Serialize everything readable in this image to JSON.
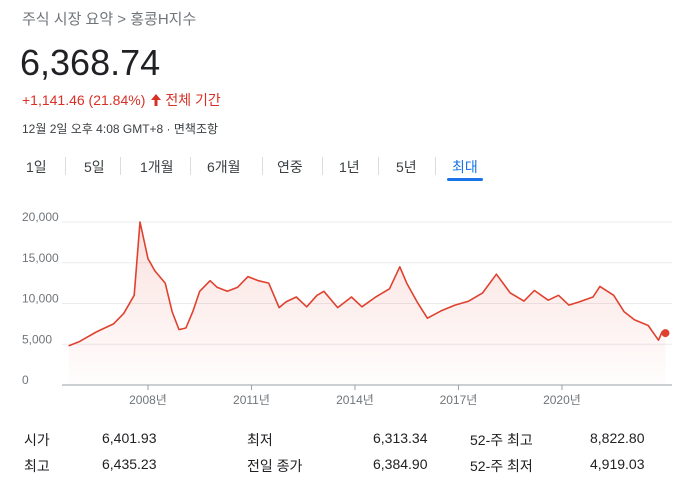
{
  "header": {
    "breadcrumb": "주식 시장 요약 > 홍콩H지수",
    "price": "6,368.74",
    "change": "+1,141.46 (21.84%)",
    "period": "전체 기간",
    "timestamp": "12월 2일 오후 4:08 GMT+8 · 면책조항"
  },
  "tabs": {
    "items": [
      "1일",
      "5일",
      "1개월",
      "6개월",
      "연중",
      "1년",
      "5년",
      "최대"
    ],
    "active": 7
  },
  "chart_data": {
    "type": "line",
    "color": "#e0412f",
    "grid": true,
    "x": [
      2005.7,
      2006.0,
      2006.5,
      2007.0,
      2007.3,
      2007.6,
      2007.77,
      2008.0,
      2008.2,
      2008.5,
      2008.7,
      2008.9,
      2009.1,
      2009.3,
      2009.5,
      2009.8,
      2010.0,
      2010.3,
      2010.6,
      2010.9,
      2011.2,
      2011.5,
      2011.8,
      2012.0,
      2012.3,
      2012.6,
      2012.9,
      2013.1,
      2013.5,
      2013.9,
      2014.2,
      2014.6,
      2015.0,
      2015.3,
      2015.5,
      2015.8,
      2016.1,
      2016.5,
      2016.9,
      2017.3,
      2017.7,
      2018.1,
      2018.5,
      2018.9,
      2019.2,
      2019.6,
      2019.9,
      2020.2,
      2020.5,
      2020.9,
      2021.1,
      2021.5,
      2021.8,
      2022.1,
      2022.5,
      2022.8,
      2022.9,
      2023.0
    ],
    "values": [
      4800,
      5300,
      6500,
      7500,
      8800,
      11000,
      20000,
      15500,
      14000,
      12500,
      9000,
      6800,
      7000,
      9000,
      11500,
      12800,
      12000,
      11500,
      12000,
      13300,
      12800,
      12500,
      9500,
      10200,
      10800,
      9600,
      11000,
      11500,
      9500,
      10800,
      9600,
      10800,
      11800,
      14500,
      12500,
      10200,
      8200,
      9100,
      9800,
      10300,
      11300,
      13600,
      11300,
      10300,
      11600,
      10400,
      11000,
      9800,
      10200,
      10800,
      12100,
      11000,
      9000,
      8000,
      7300,
      5500,
      6500,
      6369
    ],
    "xlim": [
      2005.45,
      2023.19
    ],
    "ylim": [
      0,
      20000
    ],
    "xticks": [
      {
        "value": 2008,
        "label": "2008년"
      },
      {
        "value": 2011,
        "label": "2011년"
      },
      {
        "value": 2014,
        "label": "2014년"
      },
      {
        "value": 2017,
        "label": "2017년"
      },
      {
        "value": 2020,
        "label": "2020년"
      }
    ],
    "yticks": [
      0,
      {
        "value": 5000,
        "label": "5,000"
      },
      {
        "value": 10000,
        "label": "10,000"
      },
      {
        "value": 15000,
        "label": "15,000"
      },
      {
        "value": 20000,
        "label": "20,000"
      }
    ]
  },
  "stats": [
    [
      [
        "시가",
        "6,401.93"
      ],
      [
        "최고",
        "6,435.23"
      ]
    ],
    [
      [
        "최저",
        "6,313.34"
      ],
      [
        "전일 종가",
        "6,384.90"
      ]
    ],
    [
      [
        "52-주 최고",
        "8,822.80"
      ],
      [
        "52-주 최저",
        "4,919.03"
      ]
    ]
  ]
}
